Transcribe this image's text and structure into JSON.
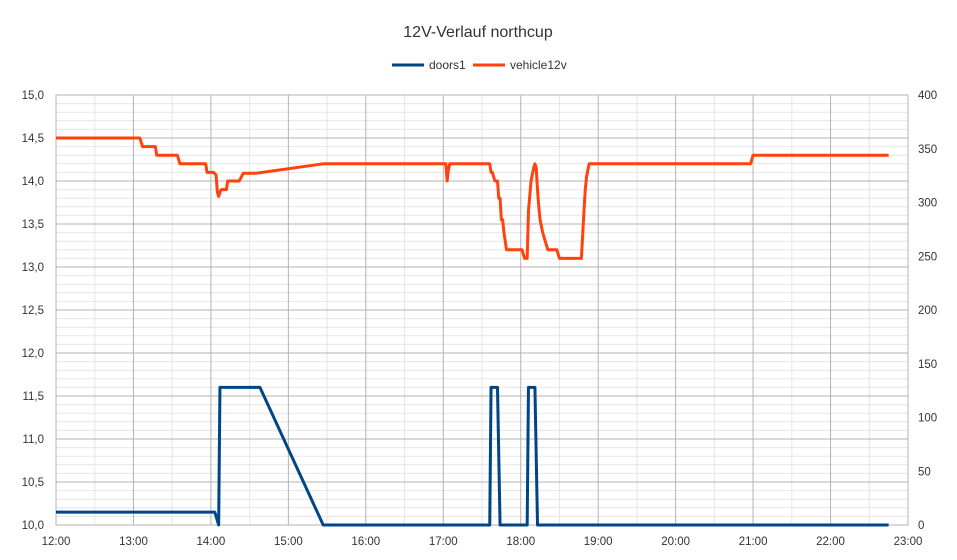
{
  "chart_data": {
    "type": "line",
    "title": "12V-Verlauf northcup",
    "legend_position": "top-center",
    "grid": true,
    "x_axis": {
      "min": "12:00",
      "max": "23:00",
      "ticks": [
        "12:00",
        "13:00",
        "14:00",
        "15:00",
        "16:00",
        "17:00",
        "18:00",
        "19:00",
        "20:00",
        "21:00",
        "22:00",
        "23:00"
      ]
    },
    "y_left": {
      "min": 10.0,
      "max": 15.0,
      "ticks": [
        "10,0",
        "10,5",
        "11,0",
        "11,5",
        "12,0",
        "12,5",
        "13,0",
        "13,5",
        "14,0",
        "14,5",
        "15,0"
      ]
    },
    "y_right": {
      "min": 0,
      "max": 400,
      "ticks": [
        "0",
        "50",
        "100",
        "150",
        "200",
        "250",
        "300",
        "350",
        "400"
      ]
    },
    "series": [
      {
        "name": "doors1",
        "axis": "left",
        "color": "#004586",
        "points": [
          [
            "12:00",
            10.15
          ],
          [
            "14:03",
            10.15
          ],
          [
            "14:06",
            10.0
          ],
          [
            "14:07",
            11.6
          ],
          [
            "14:38",
            11.6
          ],
          [
            "15:27",
            10.0
          ],
          [
            "17:36",
            10.0
          ],
          [
            "17:37",
            11.6
          ],
          [
            "17:42",
            11.6
          ],
          [
            "17:44",
            10.0
          ],
          [
            "18:05",
            10.0
          ],
          [
            "18:06",
            11.6
          ],
          [
            "18:11",
            11.6
          ],
          [
            "18:13",
            10.0
          ],
          [
            "22:45",
            10.0
          ]
        ]
      },
      {
        "name": "vehicle12v",
        "axis": "left",
        "color": "#ff420e",
        "points": [
          [
            "12:00",
            14.5
          ],
          [
            "13:05",
            14.5
          ],
          [
            "13:07",
            14.4
          ],
          [
            "13:17",
            14.4
          ],
          [
            "13:18",
            14.3
          ],
          [
            "13:34",
            14.3
          ],
          [
            "13:36",
            14.2
          ],
          [
            "13:56",
            14.2
          ],
          [
            "13:57",
            14.1
          ],
          [
            "14:02",
            14.1
          ],
          [
            "14:04",
            14.07
          ],
          [
            "14:05",
            13.87
          ],
          [
            "14:06",
            13.82
          ],
          [
            "14:07",
            13.87
          ],
          [
            "14:08",
            13.9
          ],
          [
            "14:12",
            13.9
          ],
          [
            "14:13",
            14.0
          ],
          [
            "14:22",
            14.0
          ],
          [
            "14:25",
            14.09
          ],
          [
            "14:35",
            14.09
          ],
          [
            "15:27",
            14.2
          ],
          [
            "17:02",
            14.2
          ],
          [
            "17:03",
            14.0
          ],
          [
            "17:04",
            14.13
          ],
          [
            "17:05",
            14.2
          ],
          [
            "17:36",
            14.2
          ],
          [
            "17:37",
            14.1
          ],
          [
            "17:38",
            14.1
          ],
          [
            "17:40",
            14.0
          ],
          [
            "17:42",
            14.0
          ],
          [
            "17:43",
            13.8
          ],
          [
            "17:44",
            13.8
          ],
          [
            "17:45",
            13.55
          ],
          [
            "17:46",
            13.55
          ],
          [
            "17:47",
            13.4
          ],
          [
            "17:49",
            13.2
          ],
          [
            "18:01",
            13.2
          ],
          [
            "18:03",
            13.1
          ],
          [
            "18:05",
            13.1
          ],
          [
            "18:06",
            13.65
          ],
          [
            "18:08",
            14.0
          ],
          [
            "18:10",
            14.15
          ],
          [
            "18:11",
            14.2
          ],
          [
            "18:12",
            14.15
          ],
          [
            "18:13",
            13.9
          ],
          [
            "18:14",
            13.7
          ],
          [
            "18:15",
            13.55
          ],
          [
            "18:17",
            13.4
          ],
          [
            "18:19",
            13.3
          ],
          [
            "18:21",
            13.2
          ],
          [
            "18:28",
            13.2
          ],
          [
            "18:30",
            13.1
          ],
          [
            "18:47",
            13.1
          ],
          [
            "18:49",
            13.65
          ],
          [
            "18:50",
            13.9
          ],
          [
            "18:51",
            14.05
          ],
          [
            "18:53",
            14.2
          ],
          [
            "20:58",
            14.2
          ],
          [
            "21:00",
            14.3
          ],
          [
            "22:45",
            14.3
          ]
        ]
      }
    ]
  }
}
